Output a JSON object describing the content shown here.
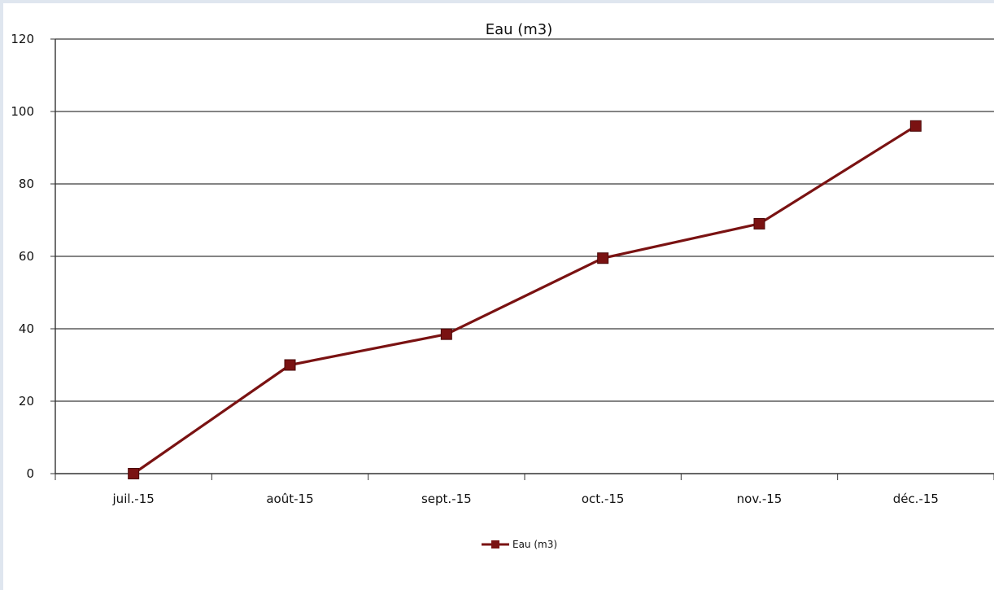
{
  "chart_data": {
    "type": "line",
    "title": "Eau (m3)",
    "xlabel": "",
    "ylabel": "",
    "categories": [
      "juil.-15",
      "août-15",
      "sept.-15",
      "oct.-15",
      "nov.-15",
      "déc.-15"
    ],
    "series": [
      {
        "name": "Eau (m3)",
        "values": [
          0,
          30,
          38.5,
          59.5,
          69,
          96
        ],
        "color": "#7a1212"
      }
    ],
    "ylim": [
      0,
      120
    ],
    "yticks": [
      "0",
      "20",
      "40",
      "60",
      "80",
      "100",
      "120"
    ],
    "grid": true,
    "legend_position": "bottom"
  }
}
